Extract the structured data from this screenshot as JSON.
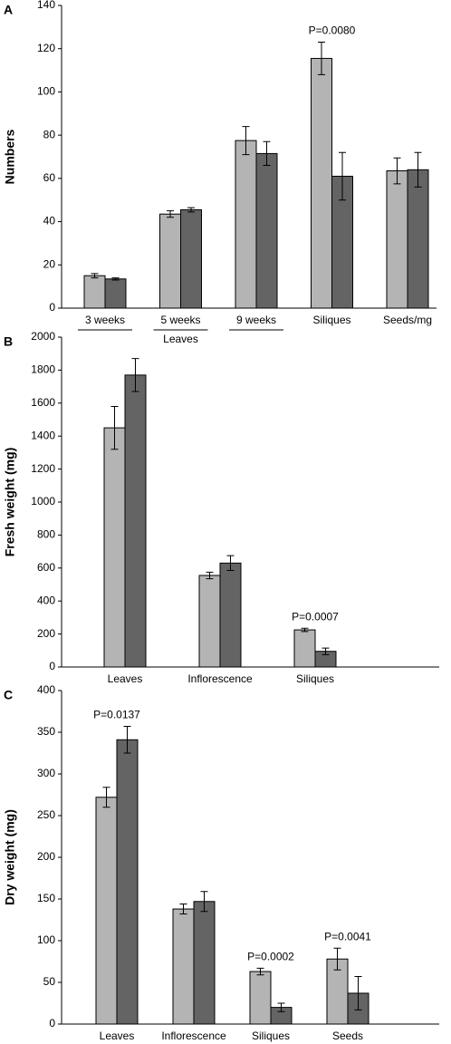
{
  "chart_data": [
    {
      "type": "bar",
      "label": "A",
      "ylabel": "Numbers",
      "categories": [
        "3 weeks",
        "5 weeks",
        "9 weeks",
        "Siliques",
        "Seeds/mg"
      ],
      "x_group_label": "Leaves",
      "series": [
        {
          "color": "#b4b4b4",
          "values": [
            15,
            43.5,
            77.5,
            115.5,
            63.5
          ],
          "errors": [
            1,
            1.5,
            6.5,
            7.5,
            6
          ]
        },
        {
          "color": "#646464",
          "values": [
            13.5,
            45.5,
            71.5,
            61,
            64
          ],
          "errors": [
            0.5,
            1,
            5.5,
            11,
            8
          ]
        }
      ],
      "annotations": [
        null,
        null,
        null,
        "P=0.0080",
        null
      ],
      "ylim": [
        0,
        140
      ],
      "yticks": [
        0,
        20,
        40,
        60,
        80,
        100,
        120,
        140
      ]
    },
    {
      "type": "bar",
      "label": "B",
      "ylabel": "Fresh weight (mg)",
      "categories": [
        "Leaves",
        "Inflorescence",
        "Siliques"
      ],
      "series": [
        {
          "color": "#b4b4b4",
          "values": [
            1450,
            555,
            225
          ],
          "errors": [
            130,
            20,
            10
          ]
        },
        {
          "color": "#646464",
          "values": [
            1770,
            630,
            95
          ],
          "errors": [
            100,
            45,
            20
          ]
        }
      ],
      "annotations": [
        null,
        null,
        "P=0.0007"
      ],
      "ylim": [
        0,
        2000
      ],
      "yticks": [
        0,
        200,
        400,
        600,
        800,
        1000,
        1200,
        1400,
        1600,
        1800,
        2000
      ]
    },
    {
      "type": "bar",
      "label": "C",
      "ylabel": "Dry weight (mg)",
      "categories": [
        "Leaves",
        "Inflorescence",
        "Siliques",
        "Seeds"
      ],
      "series": [
        {
          "color": "#b4b4b4",
          "values": [
            272,
            138,
            63,
            78
          ],
          "errors": [
            12,
            6,
            4,
            13
          ]
        },
        {
          "color": "#646464",
          "values": [
            341,
            147,
            20,
            37
          ],
          "errors": [
            16,
            12,
            5,
            20
          ]
        }
      ],
      "annotations": [
        "P=0.0137",
        null,
        "P=0.0002",
        "P=0.0041"
      ],
      "ylim": [
        0,
        400
      ],
      "yticks": [
        0,
        50,
        100,
        150,
        200,
        250,
        300,
        350,
        400
      ]
    }
  ]
}
